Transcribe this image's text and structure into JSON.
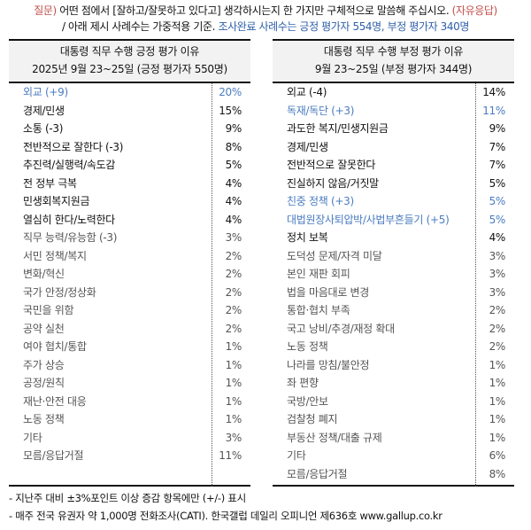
{
  "question": {
    "label": "질문)",
    "text": " 어떤 점에서 [잘하고/잘못하고 있다고] 생각하시는지 한 가지만 구체적으로 말씀해 주십시오. ",
    "free_response": "(자유응답)",
    "line2_prefix": "/ 아래 제시 사례수는 가중적용 기준. ",
    "line2_blue": "조사완료 사례수는 긍정 평가자 554명, 부정 평가자 340명"
  },
  "positive": {
    "title": "대통령 직무 수행 긍정 평가 이유",
    "subtitle": "2025년 9월 23~25일 (긍정 평가자 550명)",
    "rows": [
      {
        "label": "외교 (+9)",
        "value": "20%",
        "color": "blue"
      },
      {
        "label": "경제/민생",
        "value": "15%",
        "color": "dark"
      },
      {
        "label": "소통 (-3)",
        "value": "9%",
        "color": "dark"
      },
      {
        "label": "전반적으로 잘한다 (-3)",
        "value": "8%",
        "color": "dark"
      },
      {
        "label": "추진력/실행력/속도감",
        "value": "5%",
        "color": "dark"
      },
      {
        "label": "전 정부 극복",
        "value": "4%",
        "color": "dark"
      },
      {
        "label": "민생회복지원금",
        "value": "4%",
        "color": "dark"
      },
      {
        "label": "열심히 한다/노력한다",
        "value": "4%",
        "color": "dark"
      },
      {
        "label": "직무 능력/유능함 (-3)",
        "value": "3%",
        "color": "gray"
      },
      {
        "label": "서민 정책/복지",
        "value": "2%",
        "color": "gray"
      },
      {
        "label": "변화/혁신",
        "value": "2%",
        "color": "gray"
      },
      {
        "label": "국가 안정/정상화",
        "value": "2%",
        "color": "gray"
      },
      {
        "label": "국민을 위함",
        "value": "2%",
        "color": "gray"
      },
      {
        "label": "공약 실천",
        "value": "2%",
        "color": "gray"
      },
      {
        "label": "여야 협치/통합",
        "value": "1%",
        "color": "gray"
      },
      {
        "label": "주가 상승",
        "value": "1%",
        "color": "gray"
      },
      {
        "label": "공정/원칙",
        "value": "1%",
        "color": "gray"
      },
      {
        "label": "재난·안전 대응",
        "value": "1%",
        "color": "gray"
      },
      {
        "label": "노동 정책",
        "value": "1%",
        "color": "gray"
      },
      {
        "label": "기타",
        "value": "3%",
        "color": "gray"
      },
      {
        "label": "모름/응답거절",
        "value": "11%",
        "color": "gray"
      }
    ]
  },
  "negative": {
    "title": "대통령 직무 수행 부정 평가 이유",
    "subtitle": "9월 23~25일 (부정 평가자 344명)",
    "rows": [
      {
        "label": "외교 (-4)",
        "value": "14%",
        "color": "dark"
      },
      {
        "label": "독재/독단 (+3)",
        "value": "11%",
        "color": "blue"
      },
      {
        "label": "과도한 복지/민생지원금",
        "value": "9%",
        "color": "dark"
      },
      {
        "label": "경제/민생",
        "value": "7%",
        "color": "dark"
      },
      {
        "label": "전반적으로 잘못한다",
        "value": "7%",
        "color": "dark"
      },
      {
        "label": "진실하지 않음/거짓말",
        "value": "5%",
        "color": "dark"
      },
      {
        "label": "친중 정책 (+3)",
        "value": "5%",
        "color": "blue"
      },
      {
        "label": "대법원장사퇴압박/사법부흔들기 (+5)",
        "value": "5%",
        "color": "blue"
      },
      {
        "label": "정치 보복",
        "value": "4%",
        "color": "dark"
      },
      {
        "label": "도덕성 문제/자격 미달",
        "value": "3%",
        "color": "gray"
      },
      {
        "label": "본인 재판 회피",
        "value": "3%",
        "color": "gray"
      },
      {
        "label": "법을 마음대로 변경",
        "value": "3%",
        "color": "gray"
      },
      {
        "label": "통합·협치 부족",
        "value": "2%",
        "color": "gray"
      },
      {
        "label": "국고 낭비/추경/재정 확대",
        "value": "2%",
        "color": "gray"
      },
      {
        "label": "노동 정책",
        "value": "2%",
        "color": "gray"
      },
      {
        "label": "나라를 망침/불안정",
        "value": "1%",
        "color": "gray"
      },
      {
        "label": "좌 편향",
        "value": "1%",
        "color": "gray"
      },
      {
        "label": "국방/안보",
        "value": "1%",
        "color": "gray"
      },
      {
        "label": "검찰청 폐지",
        "value": "1%",
        "color": "gray"
      },
      {
        "label": "부동산 정책/대출 규제",
        "value": "1%",
        "color": "gray"
      },
      {
        "label": "기타",
        "value": "6%",
        "color": "gray"
      },
      {
        "label": "모름/응답거절",
        "value": "8%",
        "color": "gray"
      }
    ]
  },
  "notes": [
    "- 지난주 대비 ±3%포인트 이상 증감 항목에만 (+/-) 표시",
    "- 매주 전국 유권자 약 1,000명 전화조사(CATI). 한국갤럽 데일리 오피니언 제636호 www.gallup.co.kr"
  ],
  "colors": {
    "question_label": "#c0504d",
    "highlight_blue": "#2e5fa8",
    "change_blue": "#4a7cc0",
    "header_bg": "#f2f2f2"
  }
}
